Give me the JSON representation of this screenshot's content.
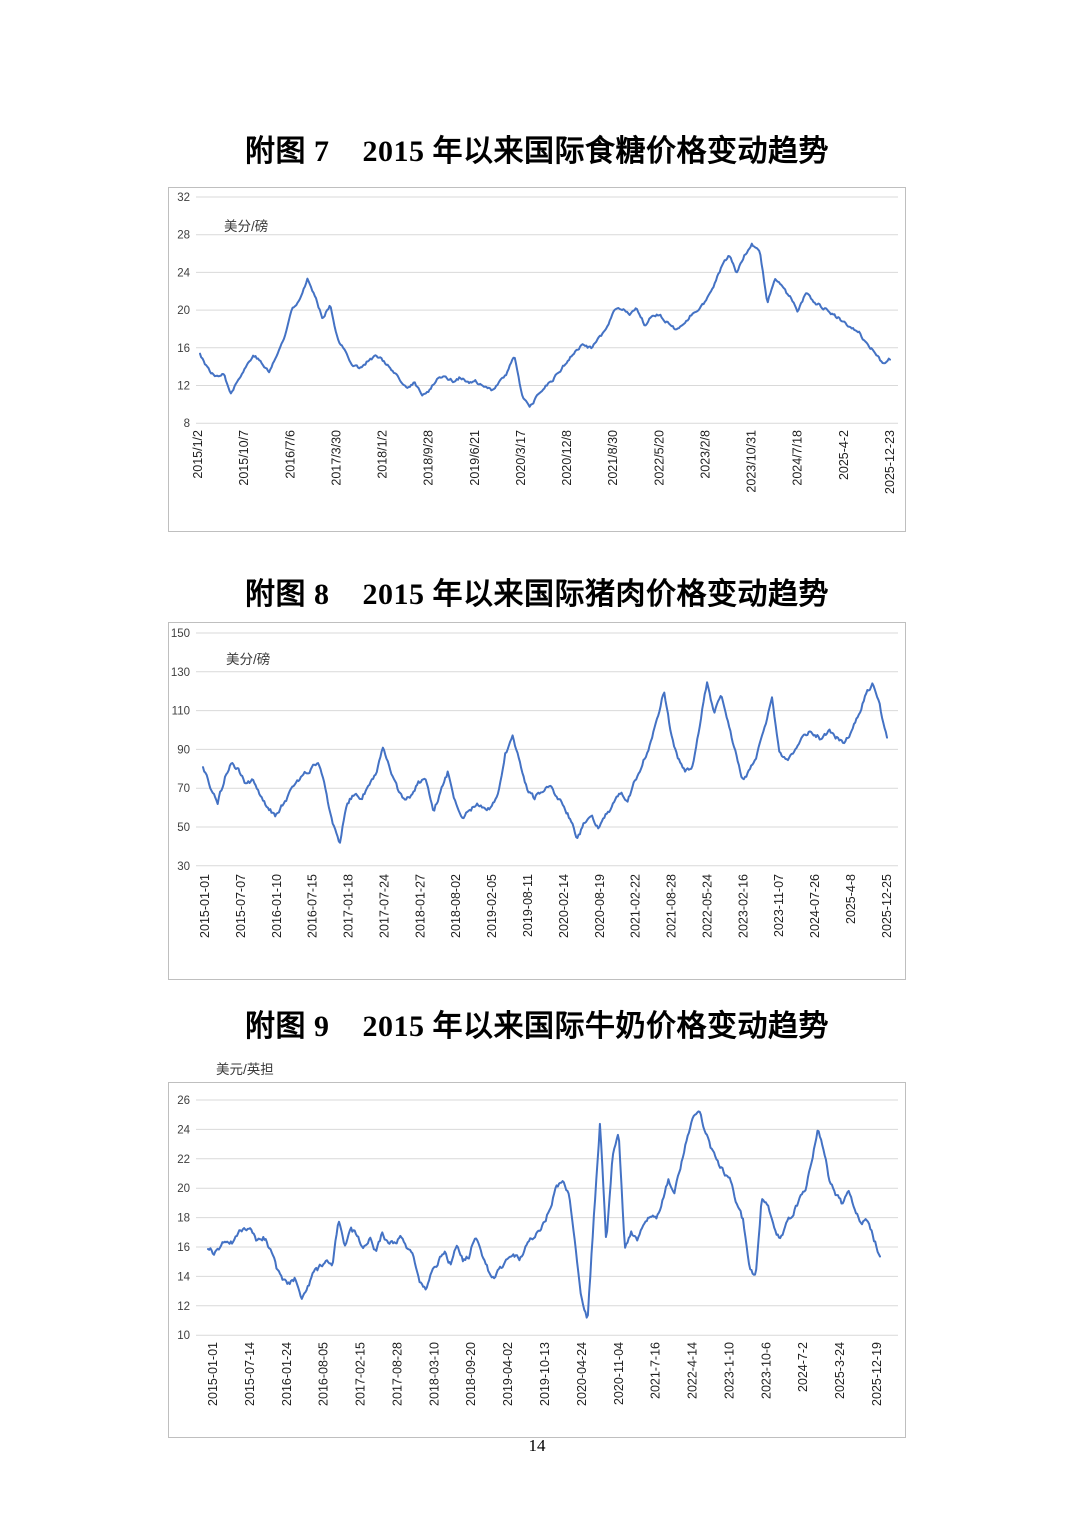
{
  "page": {
    "number": "14",
    "background": "#ffffff"
  },
  "chart_data": [
    {
      "type": "line",
      "figure_label": "附图 7",
      "title": "2015 年以来国际食糖价格变动趋势",
      "ylabel": "美分/磅",
      "ylim": [
        8,
        32
      ],
      "y_ticks": [
        32,
        28,
        24,
        20,
        16,
        12,
        8
      ],
      "grid": true,
      "legend": false,
      "x_tick_labels": [
        "2015/1/2",
        "2015/10/7",
        "2016/7/6",
        "2017/3/30",
        "2018/1/2",
        "2018/9/28",
        "2019/6/21",
        "2020/3/17",
        "2020/12/8",
        "2021/8/30",
        "2022/5/20",
        "2023/2/8",
        "2023/10/31",
        "2024/7/18",
        "2025-4-2",
        "2025-12-23"
      ],
      "values": [
        15.4,
        13.8,
        12.9,
        13.4,
        11.3,
        12.6,
        14.0,
        15.3,
        14.4,
        13.4,
        15.2,
        17.0,
        20.2,
        21.2,
        23.3,
        21.4,
        19.2,
        20.6,
        16.8,
        15.5,
        14.1,
        13.9,
        14.7,
        15.1,
        14.6,
        13.6,
        12.6,
        11.6,
        12.4,
        10.9,
        11.5,
        12.9,
        12.9,
        12.5,
        12.9,
        12.2,
        12.4,
        11.8,
        11.5,
        12.4,
        13.2,
        15.3,
        11.0,
        9.6,
        10.8,
        11.9,
        12.6,
        13.6,
        14.7,
        15.6,
        16.4,
        15.9,
        17.1,
        17.9,
        19.8,
        20.2,
        19.4,
        20.1,
        18.4,
        19.6,
        19.5,
        18.6,
        17.9,
        18.4,
        19.4,
        20.2,
        21.0,
        22.5,
        24.5,
        25.8,
        24.0,
        25.9,
        27.0,
        26.3,
        20.6,
        23.4,
        22.3,
        21.4,
        19.8,
        21.8,
        21.0,
        20.4,
        19.9,
        19.3,
        18.8,
        18.2,
        17.6,
        16.4,
        15.6,
        14.2,
        14.8
      ],
      "style": {
        "line_color": "#4472C4",
        "grid_color": "#D9D9D9",
        "border_color": "#BFBFBF",
        "tick_color": "#404040",
        "noise": 0.3
      }
    },
    {
      "type": "line",
      "figure_label": "附图 8",
      "title": "2015 年以来国际猪肉价格变动趋势",
      "ylabel": "美分/磅",
      "ylim": [
        30,
        150
      ],
      "y_ticks": [
        150,
        130,
        110,
        90,
        70,
        50,
        30
      ],
      "grid": true,
      "legend": false,
      "x_tick_labels": [
        "2015-01-01",
        "2015-07-07",
        "2016-01-10",
        "2016-07-15",
        "2017-01-18",
        "2017-07-24",
        "2018-01-27",
        "2018-08-02",
        "2019-02-05",
        "2019-08-11",
        "2020-02-14",
        "2020-08-19",
        "2021-02-22",
        "2021-08-28",
        "2022-05-24",
        "2023-02-16",
        "2023-11-07",
        "2024-07-26",
        "2025-4-8",
        "2025-12-25"
      ],
      "values": [
        80,
        71,
        62,
        75,
        83,
        79,
        72,
        74,
        66,
        60,
        56,
        61,
        67,
        73,
        78,
        80,
        83,
        70,
        52,
        42,
        62,
        67,
        65,
        71,
        77,
        90,
        80,
        70,
        63,
        67,
        73,
        75,
        58,
        68,
        78,
        64,
        55,
        58,
        62,
        59,
        60,
        67,
        88,
        96,
        83,
        70,
        65,
        68,
        72,
        67,
        62,
        54,
        44,
        52,
        55,
        49,
        56,
        62,
        67,
        64,
        74,
        82,
        92,
        104,
        120,
        98,
        85,
        78,
        82,
        103,
        124,
        109,
        117,
        103,
        88,
        74,
        79,
        88,
        100,
        117,
        90,
        84,
        88,
        94,
        99,
        98,
        95,
        100,
        96,
        94,
        99,
        107,
        118,
        124,
        112,
        96
      ],
      "style": {
        "line_color": "#4472C4",
        "grid_color": "#D9D9D9",
        "border_color": "#BFBFBF",
        "tick_color": "#404040",
        "noise": 2.0
      }
    },
    {
      "type": "line",
      "figure_label": "附图 9",
      "title": "2015 年以来国际牛奶价格变动趋势",
      "ylabel": "美元/英担",
      "ylim": [
        10,
        26
      ],
      "y_ticks": [
        26,
        24,
        22,
        20,
        18,
        16,
        14,
        12,
        10
      ],
      "grid": true,
      "legend": false,
      "x_tick_labels": [
        "2015-01-01",
        "2015-07-14",
        "2016-01-24",
        "2016-08-05",
        "2017-02-15",
        "2017-08-28",
        "2018-03-10",
        "2018-09-20",
        "2019-04-02",
        "2019-10-13",
        "2020-04-24",
        "2020-11-04",
        "2021-7-16",
        "2022-4-14",
        "2023-1-10",
        "2023-10-6",
        "2024-7-2",
        "2025-3-24",
        "2025-12-19"
      ],
      "values": [
        15.9,
        15.6,
        16.1,
        16.5,
        16.2,
        16.9,
        17.3,
        17.0,
        16.4,
        16.7,
        15.8,
        14.6,
        13.8,
        13.5,
        13.9,
        12.4,
        13.2,
        14.2,
        14.6,
        15.2,
        14.7,
        18.0,
        16.2,
        17.1,
        16.8,
        16.0,
        16.6,
        15.7,
        16.9,
        16.1,
        16.4,
        16.6,
        15.8,
        15.3,
        13.8,
        13.3,
        14.2,
        14.9,
        15.7,
        14.8,
        16.3,
        15.1,
        15.4,
        16.9,
        15.6,
        14.5,
        13.9,
        14.5,
        15.0,
        15.6,
        15.2,
        16.0,
        16.6,
        16.9,
        17.5,
        18.8,
        20.0,
        20.4,
        19.6,
        16.0,
        12.5,
        11.0,
        18.0,
        24.5,
        16.2,
        22.0,
        24.0,
        15.8,
        17.0,
        16.4,
        17.5,
        18.2,
        17.8,
        19.2,
        20.5,
        19.8,
        21.5,
        23.5,
        24.8,
        25.2,
        23.8,
        22.5,
        21.8,
        21.0,
        20.5,
        19.0,
        17.8,
        14.5,
        13.9,
        19.4,
        18.8,
        17.2,
        16.6,
        17.5,
        18.3,
        19.2,
        20.0,
        21.8,
        23.9,
        22.5,
        20.3,
        19.6,
        18.9,
        19.8,
        18.3,
        17.6,
        17.9,
        16.6,
        15.3
      ],
      "style": {
        "line_color": "#4472C4",
        "grid_color": "#D9D9D9",
        "border_color": "#BFBFBF",
        "tick_color": "#404040",
        "noise": 0.32
      }
    }
  ]
}
